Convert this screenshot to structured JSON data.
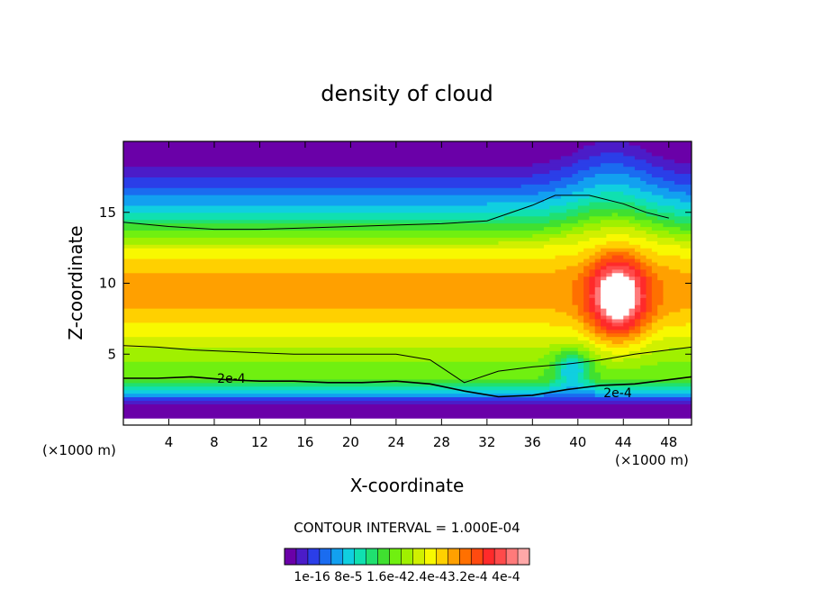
{
  "chart_data": {
    "type": "heatmap",
    "title": "density of cloud",
    "xlabel": "X-coordinate",
    "ylabel": "Z-coordinate",
    "x_unit_left": "(×1000 m)",
    "x_unit_right": "(×1000 m)",
    "xlim": [
      0,
      50
    ],
    "ylim": [
      0,
      20
    ],
    "x_ticks": [
      4,
      8,
      12,
      16,
      20,
      24,
      28,
      32,
      36,
      40,
      44,
      48
    ],
    "y_ticks": [
      5,
      10,
      15
    ],
    "contour_interval_text": "CONTOUR INTERVAL = 1.000E-04",
    "contour_label": "2e-4",
    "contour_label_positions": [
      [
        9.5,
        3.3
      ],
      [
        43.5,
        2.3
      ]
    ],
    "colorbar_labels": [
      "1e-16",
      "8e-5",
      "1.6e-4",
      "2.4e-4",
      "3.2e-4",
      "4e-4"
    ],
    "colorbar_text": "1e-16 8e-5 1.6e-42.4e-43.2e-4 4e-4",
    "levels": [
      0,
      2e-05,
      4e-05,
      6e-05,
      8e-05,
      0.0001,
      0.00012,
      0.00014,
      0.00016,
      0.00018,
      0.0002,
      0.00022,
      0.00024,
      0.00026,
      0.00028,
      0.0003,
      0.00032,
      0.00034,
      0.00036,
      0.00038,
      0.0004
    ],
    "level_colors": [
      "#6a00a8",
      "#4b1cc8",
      "#2b3ee8",
      "#1a6cf0",
      "#12a0f0",
      "#10cfe0",
      "#10e0b0",
      "#20e070",
      "#40e030",
      "#70f010",
      "#a0f000",
      "#d0f000",
      "#f8f800",
      "#ffd000",
      "#ffa000",
      "#ff7000",
      "#ff4a10",
      "#ff2a2a",
      "#ff4a4a",
      "#ff7a7a",
      "#ffa8a8"
    ],
    "max_region_color": "#ffffff",
    "contour_2e4_z": [
      3.3,
      3.3,
      3.4,
      3.2,
      3.1,
      3.1,
      3.0,
      3.0,
      3.1,
      2.9,
      2.4,
      2.0,
      2.1,
      2.5,
      2.8,
      2.9,
      3.4
    ],
    "contour_upper_z": [
      5.6,
      5.5,
      5.3,
      5.2,
      5.1,
      5.0,
      5.0,
      5.0,
      5.0,
      4.6,
      3.0,
      3.8,
      4.1,
      4.3,
      4.6,
      5.0,
      5.5
    ],
    "contour_top_z": [
      14.3,
      14.0,
      13.8,
      13.8,
      13.9,
      14.0,
      14.1,
      14.2,
      14.4,
      15.5,
      16.2,
      16.2,
      15.6,
      15.0,
      14.6
    ],
    "contour_x_17": [
      0,
      3,
      6,
      9,
      12,
      15,
      18,
      21,
      24,
      27,
      30,
      33,
      36,
      39,
      42,
      45,
      50
    ],
    "contour_x_15": [
      0,
      4,
      8,
      12,
      16,
      20,
      24,
      28,
      32,
      36,
      38,
      41,
      44,
      46,
      48
    ]
  }
}
